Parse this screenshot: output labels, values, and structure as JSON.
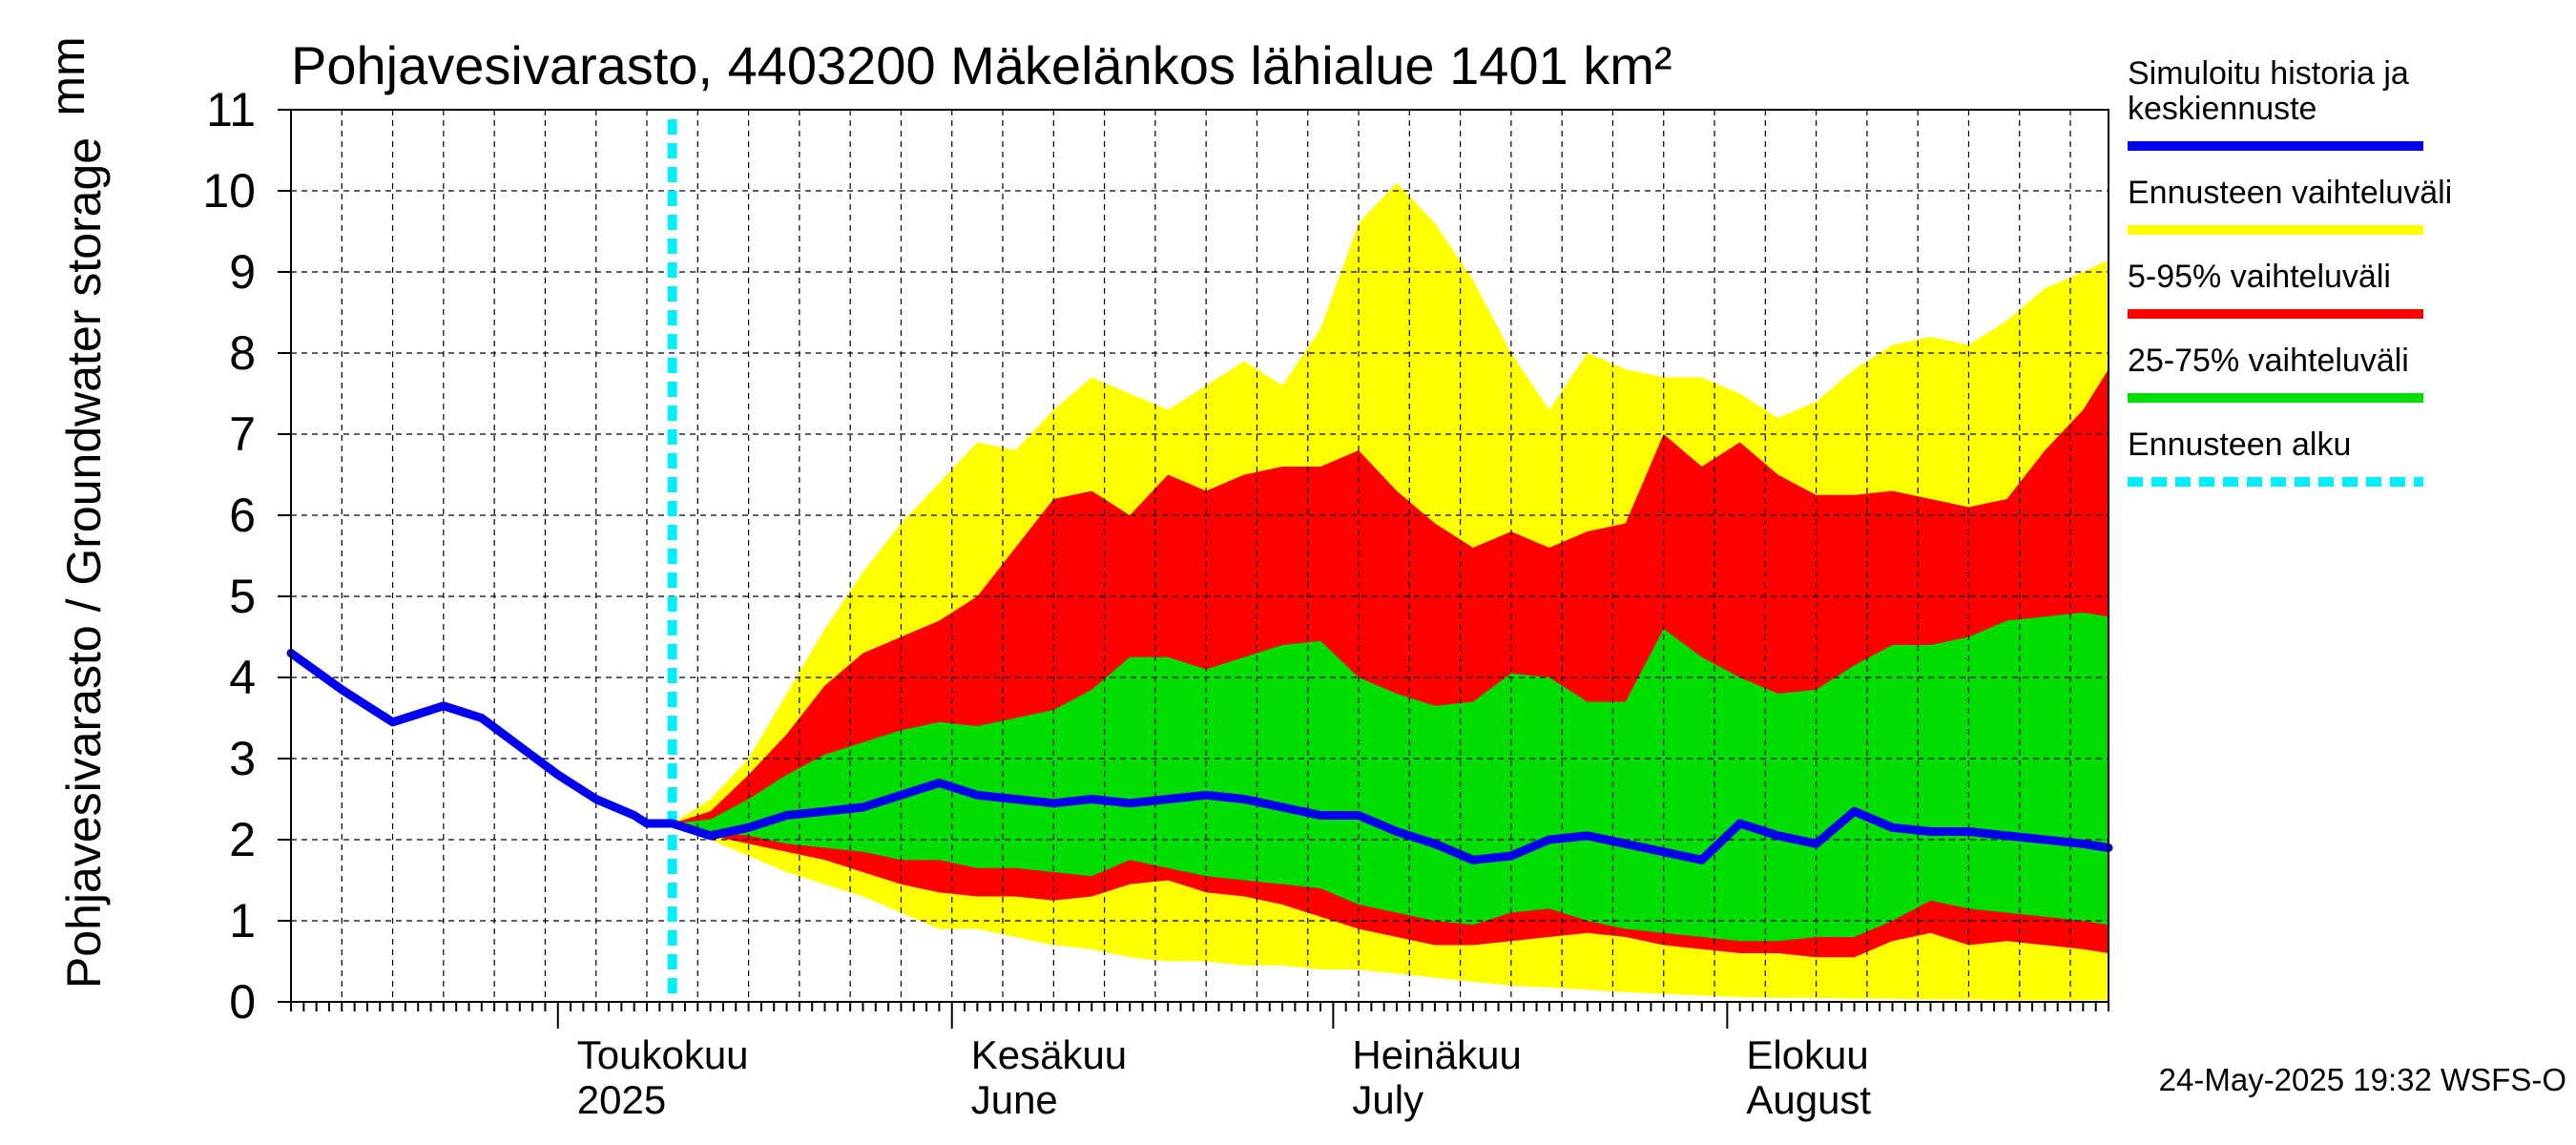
{
  "chart_data": {
    "type": "area",
    "title": "Pohjavesivarasto, 4403200 Mäkelänkos lähialue 1401 km²",
    "ylabel": "Pohjavesivarasto / Groundwater storage",
    "yunit": "mm",
    "ylim": [
      0,
      11
    ],
    "yticks": [
      "0",
      "1",
      "2",
      "3",
      "4",
      "5",
      "6",
      "7",
      "8",
      "9",
      "10",
      "11"
    ],
    "xlim": [
      "2025-04-10",
      "2025-08-31"
    ],
    "grid": true,
    "month_labels": [
      {
        "date": "2025-05-01",
        "line1": "Toukokuu",
        "line2": "2025"
      },
      {
        "date": "2025-06-01",
        "line1": "Kesäkuu",
        "line2": "June"
      },
      {
        "date": "2025-07-01",
        "line1": "Heinäkuu",
        "line2": "July"
      },
      {
        "date": "2025-08-01",
        "line1": "Elokuu",
        "line2": "August"
      }
    ],
    "forecast_start": "2025-05-10",
    "legend": [
      {
        "label_lines": [
          "Simuloitu historia ja",
          "keskiennuste"
        ],
        "color": "#0000ee",
        "style": "solid"
      },
      {
        "label_lines": [
          "Ennusteen vaihteluväli"
        ],
        "color": "#ffff00",
        "style": "solid"
      },
      {
        "label_lines": [
          "5-95% vaihteluväli"
        ],
        "color": "#ff0000",
        "style": "solid"
      },
      {
        "label_lines": [
          "25-75% vaihteluväli"
        ],
        "color": "#00dd00",
        "style": "solid"
      },
      {
        "label_lines": [
          "Ennusteen alku"
        ],
        "color": "#00eeff",
        "style": "dashed"
      }
    ],
    "legend_placement": "right",
    "series": [
      {
        "name": "Simuloitu historia ja keskiennuste",
        "x": [
          "2025-04-10",
          "2025-04-14",
          "2025-04-18",
          "2025-04-22",
          "2025-04-25",
          "2025-04-28",
          "2025-05-01",
          "2025-05-04",
          "2025-05-07",
          "2025-05-08",
          "2025-05-10",
          "2025-05-13",
          "2025-05-16",
          "2025-05-19",
          "2025-05-22",
          "2025-05-25",
          "2025-05-28",
          "2025-05-31",
          "2025-06-03",
          "2025-06-06",
          "2025-06-09",
          "2025-06-12",
          "2025-06-15",
          "2025-06-18",
          "2025-06-21",
          "2025-06-24",
          "2025-06-27",
          "2025-06-30",
          "2025-07-03",
          "2025-07-06",
          "2025-07-09",
          "2025-07-12",
          "2025-07-15",
          "2025-07-18",
          "2025-07-21",
          "2025-07-24",
          "2025-07-27",
          "2025-07-30",
          "2025-08-02",
          "2025-08-05",
          "2025-08-08",
          "2025-08-11",
          "2025-08-14",
          "2025-08-17",
          "2025-08-20",
          "2025-08-23",
          "2025-08-26",
          "2025-08-29",
          "2025-08-31"
        ],
        "y": [
          4.3,
          3.85,
          3.45,
          3.65,
          3.5,
          3.15,
          2.8,
          2.5,
          2.3,
          2.2,
          2.2,
          2.05,
          2.15,
          2.3,
          2.35,
          2.4,
          2.55,
          2.7,
          2.55,
          2.5,
          2.45,
          2.5,
          2.45,
          2.5,
          2.55,
          2.5,
          2.4,
          2.3,
          2.3,
          2.1,
          1.95,
          1.75,
          1.8,
          2.0,
          2.05,
          1.95,
          1.85,
          1.75,
          2.2,
          2.05,
          1.95,
          2.35,
          2.15,
          2.1,
          2.1,
          2.05,
          2.0,
          1.95,
          1.9
        ]
      },
      {
        "name": "Ennusteen vaihteluväli",
        "x": [
          "2025-05-10",
          "2025-05-13",
          "2025-05-16",
          "2025-05-19",
          "2025-05-22",
          "2025-05-25",
          "2025-05-28",
          "2025-05-31",
          "2025-06-03",
          "2025-06-06",
          "2025-06-09",
          "2025-06-12",
          "2025-06-15",
          "2025-06-18",
          "2025-06-21",
          "2025-06-24",
          "2025-06-27",
          "2025-06-30",
          "2025-07-03",
          "2025-07-06",
          "2025-07-09",
          "2025-07-12",
          "2025-07-15",
          "2025-07-18",
          "2025-07-21",
          "2025-07-24",
          "2025-07-27",
          "2025-07-30",
          "2025-08-02",
          "2025-08-05",
          "2025-08-08",
          "2025-08-11",
          "2025-08-14",
          "2025-08-17",
          "2025-08-20",
          "2025-08-23",
          "2025-08-26",
          "2025-08-29",
          "2025-08-31"
        ],
        "upper": [
          2.2,
          2.5,
          3.0,
          3.8,
          4.6,
          5.3,
          5.9,
          6.4,
          6.9,
          6.8,
          7.3,
          7.7,
          7.5,
          7.3,
          7.6,
          7.9,
          7.6,
          8.3,
          9.6,
          10.1,
          9.6,
          8.9,
          8.0,
          7.3,
          8.0,
          7.8,
          7.7,
          7.7,
          7.5,
          7.2,
          7.4,
          7.8,
          8.1,
          8.2,
          8.1,
          8.4,
          8.8,
          9.0,
          9.15
        ],
        "lower": [
          2.2,
          2.0,
          1.8,
          1.6,
          1.45,
          1.3,
          1.1,
          0.9,
          0.9,
          0.8,
          0.7,
          0.65,
          0.55,
          0.5,
          0.5,
          0.45,
          0.45,
          0.4,
          0.4,
          0.35,
          0.3,
          0.25,
          0.2,
          0.18,
          0.15,
          0.12,
          0.1,
          0.08,
          0.06,
          0.05,
          0.05,
          0.04,
          0.04,
          0.03,
          0.03,
          0.02,
          0.02,
          0.02,
          0.02
        ]
      },
      {
        "name": "5-95% vaihteluväli",
        "x": [
          "2025-05-10",
          "2025-05-13",
          "2025-05-16",
          "2025-05-19",
          "2025-05-22",
          "2025-05-25",
          "2025-05-28",
          "2025-05-31",
          "2025-06-03",
          "2025-06-06",
          "2025-06-09",
          "2025-06-12",
          "2025-06-15",
          "2025-06-18",
          "2025-06-21",
          "2025-06-24",
          "2025-06-27",
          "2025-06-30",
          "2025-07-03",
          "2025-07-06",
          "2025-07-09",
          "2025-07-12",
          "2025-07-15",
          "2025-07-18",
          "2025-07-21",
          "2025-07-24",
          "2025-07-27",
          "2025-07-30",
          "2025-08-02",
          "2025-08-05",
          "2025-08-08",
          "2025-08-11",
          "2025-08-14",
          "2025-08-17",
          "2025-08-20",
          "2025-08-23",
          "2025-08-26",
          "2025-08-29",
          "2025-08-31"
        ],
        "upper": [
          2.2,
          2.35,
          2.8,
          3.3,
          3.9,
          4.3,
          4.5,
          4.7,
          5.0,
          5.6,
          6.2,
          6.3,
          6.0,
          6.5,
          6.3,
          6.5,
          6.6,
          6.6,
          6.8,
          6.3,
          5.9,
          5.6,
          5.8,
          5.6,
          5.8,
          5.9,
          7.0,
          6.6,
          6.9,
          6.5,
          6.25,
          6.25,
          6.3,
          6.2,
          6.1,
          6.2,
          6.8,
          7.3,
          7.8
        ],
        "lower": [
          2.2,
          2.05,
          1.95,
          1.85,
          1.75,
          1.6,
          1.45,
          1.35,
          1.3,
          1.3,
          1.25,
          1.3,
          1.45,
          1.5,
          1.35,
          1.3,
          1.2,
          1.05,
          0.9,
          0.8,
          0.7,
          0.7,
          0.75,
          0.8,
          0.85,
          0.8,
          0.7,
          0.65,
          0.6,
          0.6,
          0.55,
          0.55,
          0.75,
          0.85,
          0.7,
          0.75,
          0.7,
          0.65,
          0.6
        ]
      },
      {
        "name": "25-75% vaihteluväli",
        "x": [
          "2025-05-10",
          "2025-05-13",
          "2025-05-16",
          "2025-05-19",
          "2025-05-22",
          "2025-05-25",
          "2025-05-28",
          "2025-05-31",
          "2025-06-03",
          "2025-06-06",
          "2025-06-09",
          "2025-06-12",
          "2025-06-15",
          "2025-06-18",
          "2025-06-21",
          "2025-06-24",
          "2025-06-27",
          "2025-06-30",
          "2025-07-03",
          "2025-07-06",
          "2025-07-09",
          "2025-07-12",
          "2025-07-15",
          "2025-07-18",
          "2025-07-21",
          "2025-07-24",
          "2025-07-27",
          "2025-07-30",
          "2025-08-02",
          "2025-08-05",
          "2025-08-08",
          "2025-08-11",
          "2025-08-14",
          "2025-08-17",
          "2025-08-20",
          "2025-08-23",
          "2025-08-26",
          "2025-08-29",
          "2025-08-31"
        ],
        "upper": [
          2.2,
          2.25,
          2.5,
          2.8,
          3.05,
          3.2,
          3.35,
          3.45,
          3.4,
          3.5,
          3.6,
          3.85,
          4.25,
          4.25,
          4.1,
          4.25,
          4.4,
          4.45,
          4.0,
          3.8,
          3.65,
          3.7,
          4.05,
          4.0,
          3.7,
          3.7,
          4.6,
          4.25,
          4.0,
          3.8,
          3.85,
          4.15,
          4.4,
          4.4,
          4.5,
          4.7,
          4.75,
          4.8,
          4.75
        ],
        "lower": [
          2.2,
          2.1,
          2.05,
          1.95,
          1.9,
          1.85,
          1.75,
          1.75,
          1.65,
          1.65,
          1.6,
          1.55,
          1.75,
          1.65,
          1.55,
          1.5,
          1.45,
          1.4,
          1.2,
          1.1,
          1.0,
          0.95,
          1.1,
          1.15,
          1.0,
          0.9,
          0.85,
          0.8,
          0.75,
          0.75,
          0.8,
          0.8,
          1.0,
          1.25,
          1.15,
          1.1,
          1.05,
          1.0,
          0.95
        ]
      }
    ]
  },
  "footer": {
    "timestamp": "24-May-2025 19:32 WSFS-O"
  }
}
